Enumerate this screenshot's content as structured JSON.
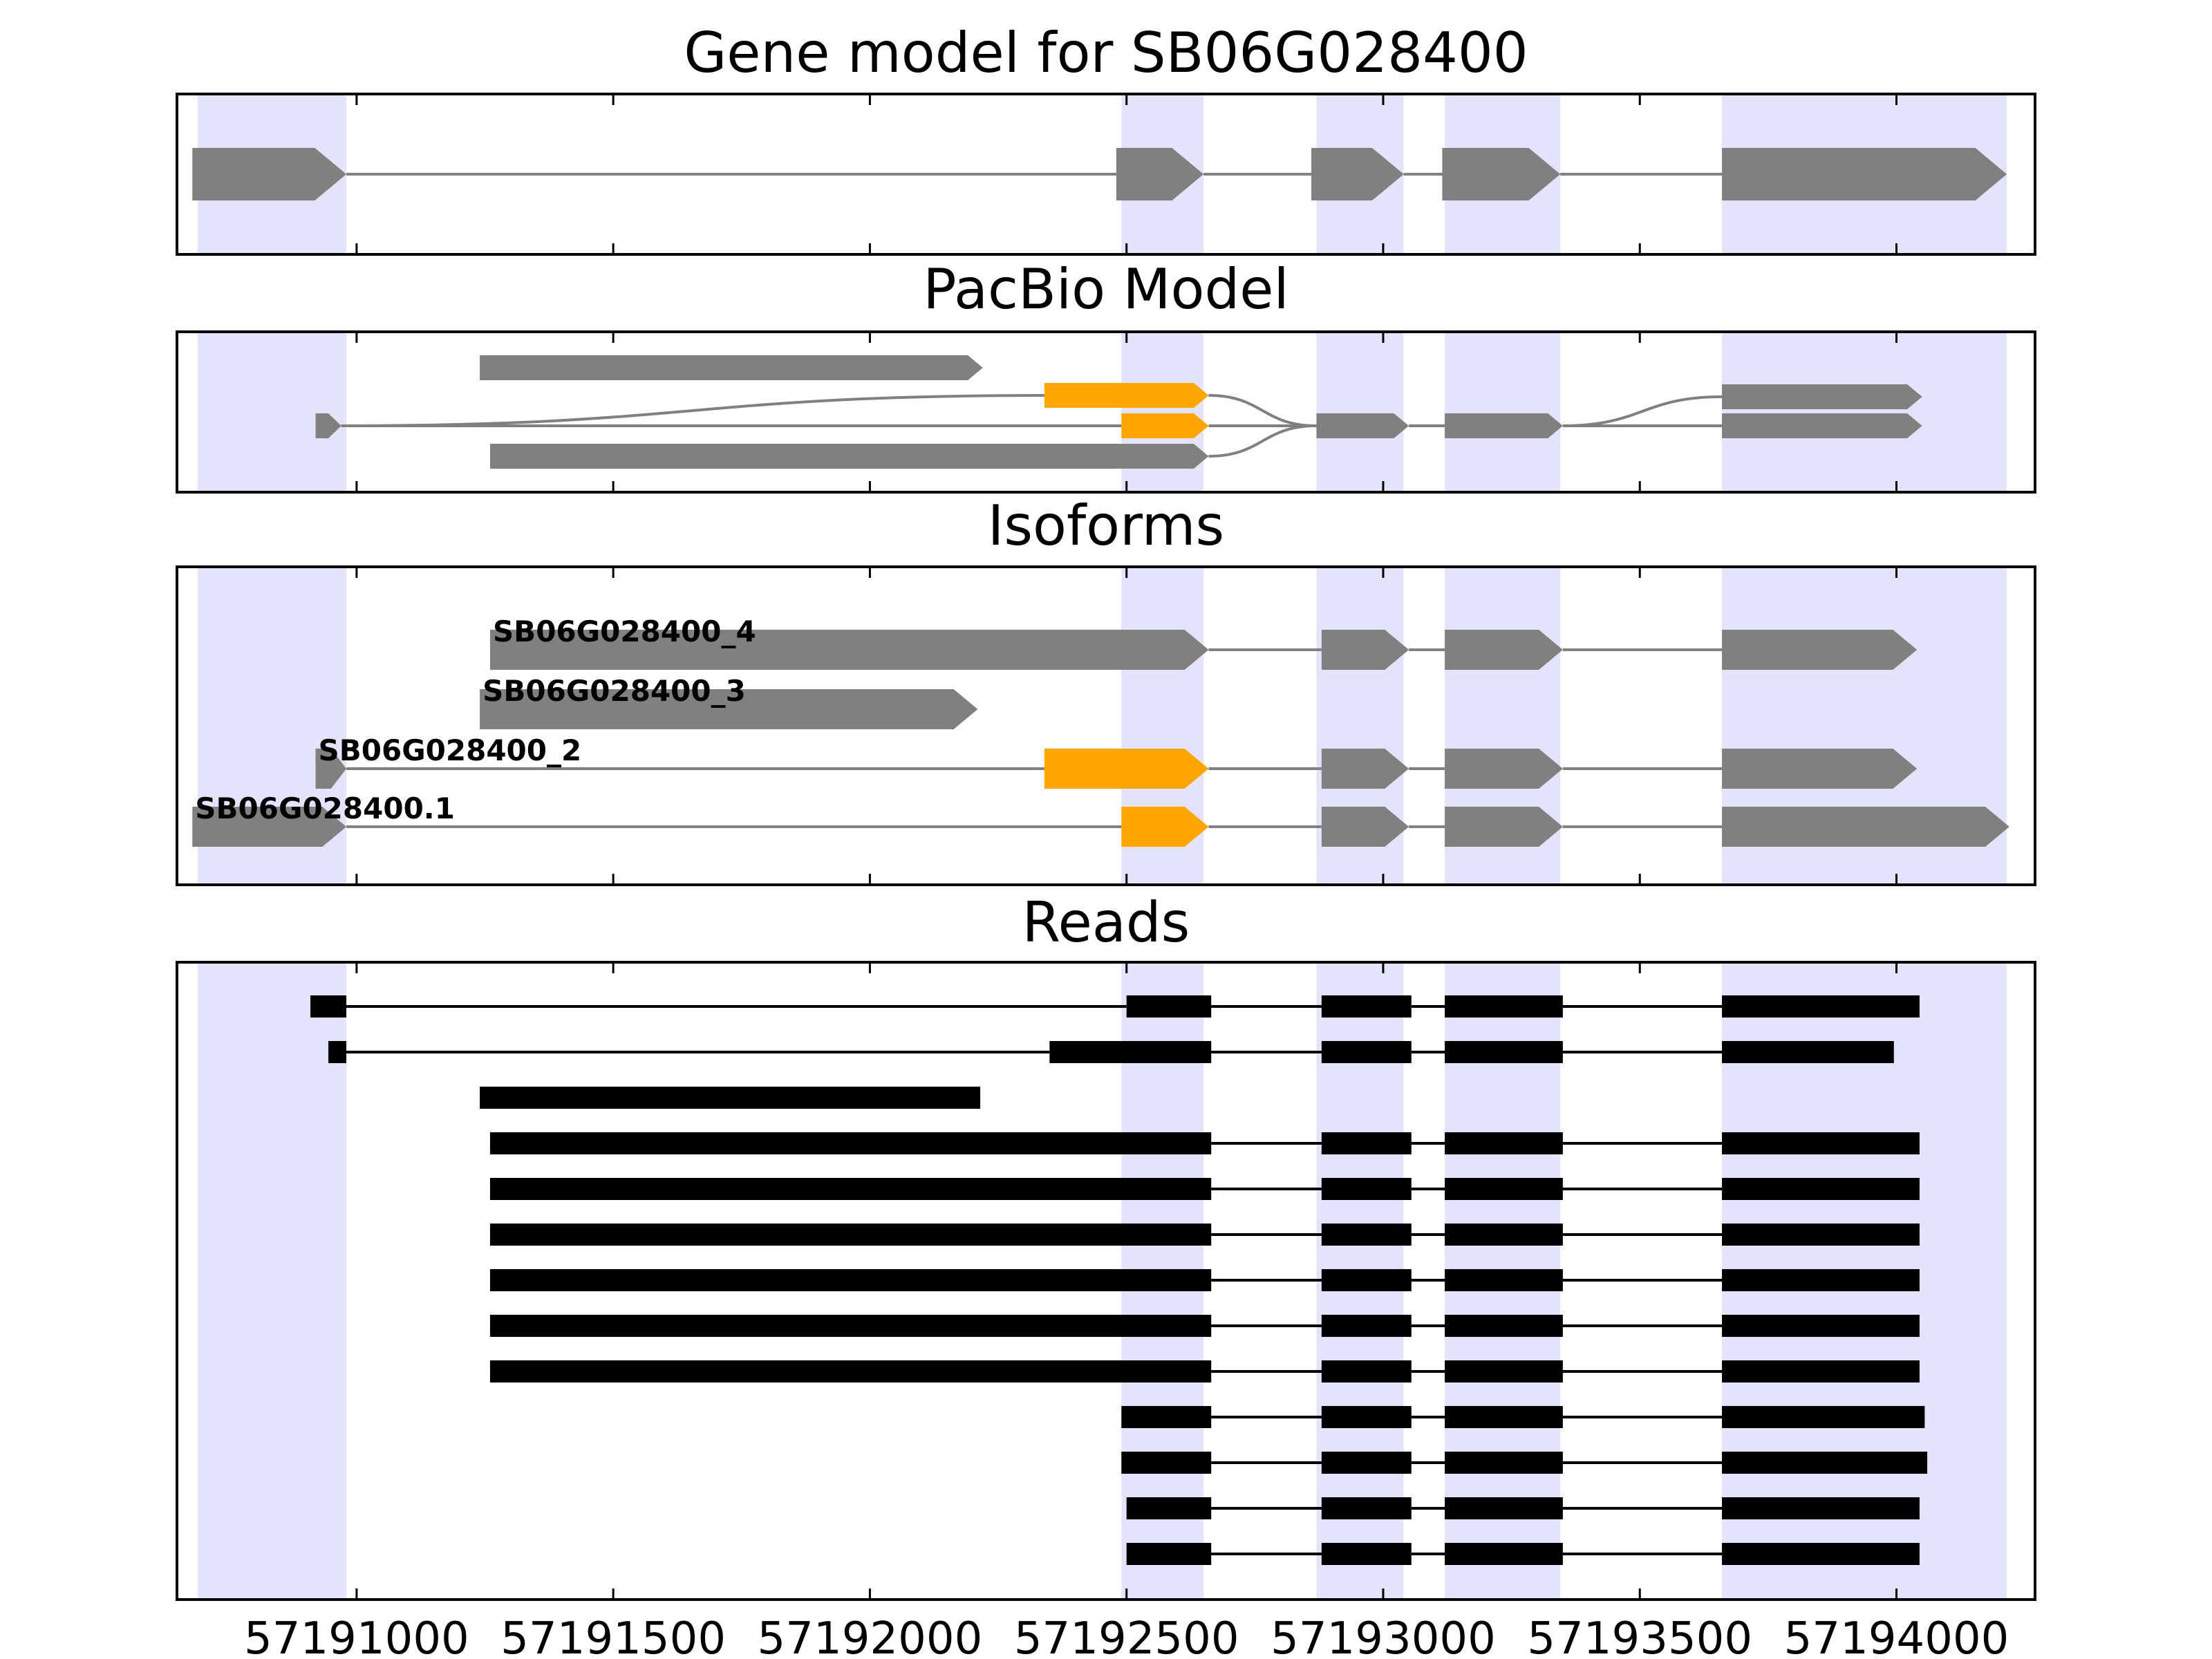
{
  "figure": {
    "titles": {
      "gene": "Gene model for SB06G028400",
      "pacbio": "PacBio Model",
      "isoforms": "Isoforms",
      "reads": "Reads"
    },
    "x_range": [
      57190650,
      57194270
    ],
    "x_ticks": [
      57191000,
      57191500,
      57192000,
      57192500,
      57193000,
      57193500,
      57194000
    ],
    "colors": {
      "exon": "#808080",
      "highlight": "#ffa500",
      "shade": "#e3e3fb",
      "read": "#000000",
      "intron": "#808080"
    },
    "shaded_regions": [
      [
        57190690,
        57190980
      ],
      [
        57192490,
        57192650
      ],
      [
        57192870,
        57193040
      ],
      [
        57193120,
        57193345
      ],
      [
        57193660,
        57194215
      ]
    ],
    "gene_model": {
      "exons": [
        [
          57190680,
          57190980
        ],
        [
          57192480,
          57192650
        ],
        [
          57192860,
          57193040
        ],
        [
          57193115,
          57193345
        ],
        [
          57193660,
          57194215
        ]
      ]
    },
    "pacbio_model": {
      "rows": [
        {
          "exons": [
            [
              57191240,
              57192220
            ]
          ]
        },
        {
          "exons": [
            [
              57190920,
              57190970
            ],
            [
              57192490,
              57192660
            ],
            [
              57192870,
              57193050
            ],
            [
              57193120,
              57193350
            ],
            [
              57193660,
              57194050
            ]
          ],
          "highlight": [
            1
          ]
        },
        {
          "exons": [
            [
              57191260,
              57192660
            ]
          ]
        }
      ],
      "alt_starts": [
        {
          "exon": [
            57192340,
            57192660
          ],
          "highlight": true
        }
      ],
      "alt_ends": [
        {
          "exon": [
            57193660,
            57194050
          ]
        }
      ]
    },
    "isoforms": [
      {
        "name": "SB06G028400_4",
        "exons": [
          [
            57191260,
            57192660
          ],
          [
            57192880,
            57193050
          ],
          [
            57193120,
            57193350
          ],
          [
            57193660,
            57194040
          ]
        ],
        "highlight": []
      },
      {
        "name": "SB06G028400_3",
        "exons": [
          [
            57191240,
            57192210
          ]
        ],
        "highlight": []
      },
      {
        "name": "SB06G028400_2",
        "exons": [
          [
            57190920,
            57190980
          ],
          [
            57192340,
            57192660
          ],
          [
            57192880,
            57193050
          ],
          [
            57193120,
            57193350
          ],
          [
            57193660,
            57194040
          ]
        ],
        "highlight": [
          1
        ]
      },
      {
        "name": "SB06G028400.1",
        "exons": [
          [
            57190680,
            57190980
          ],
          [
            57192490,
            57192660
          ],
          [
            57192880,
            57193050
          ],
          [
            57193120,
            57193350
          ],
          [
            57193660,
            57194220
          ]
        ],
        "highlight": [
          1
        ]
      }
    ],
    "reads": [
      [
        [
          57190910,
          57190980
        ],
        [
          57192500,
          57192665
        ],
        [
          57192880,
          57193055
        ],
        [
          57193120,
          57193350
        ],
        [
          57193660,
          57194045
        ]
      ],
      [
        [
          57190945,
          57190980
        ],
        [
          57192350,
          57192665
        ],
        [
          57192880,
          57193055
        ],
        [
          57193120,
          57193350
        ],
        [
          57193660,
          57193995
        ]
      ],
      [
        [
          57191240,
          57192215
        ]
      ],
      [
        [
          57191260,
          57192665
        ],
        [
          57192880,
          57193055
        ],
        [
          57193120,
          57193350
        ],
        [
          57193660,
          57194045
        ]
      ],
      [
        [
          57191260,
          57192665
        ],
        [
          57192880,
          57193055
        ],
        [
          57193120,
          57193350
        ],
        [
          57193660,
          57194045
        ]
      ],
      [
        [
          57191260,
          57192665
        ],
        [
          57192880,
          57193055
        ],
        [
          57193120,
          57193350
        ],
        [
          57193660,
          57194045
        ]
      ],
      [
        [
          57191260,
          57192665
        ],
        [
          57192880,
          57193055
        ],
        [
          57193120,
          57193350
        ],
        [
          57193660,
          57194045
        ]
      ],
      [
        [
          57191260,
          57192665
        ],
        [
          57192880,
          57193055
        ],
        [
          57193120,
          57193350
        ],
        [
          57193660,
          57194045
        ]
      ],
      [
        [
          57191260,
          57192665
        ],
        [
          57192880,
          57193055
        ],
        [
          57193120,
          57193350
        ],
        [
          57193660,
          57194045
        ]
      ],
      [
        [
          57192490,
          57192665
        ],
        [
          57192880,
          57193055
        ],
        [
          57193120,
          57193350
        ],
        [
          57193660,
          57194055
        ]
      ],
      [
        [
          57192490,
          57192665
        ],
        [
          57192880,
          57193055
        ],
        [
          57193120,
          57193350
        ],
        [
          57193660,
          57194060
        ]
      ],
      [
        [
          57192500,
          57192665
        ],
        [
          57192880,
          57193055
        ],
        [
          57193120,
          57193350
        ],
        [
          57193660,
          57194045
        ]
      ],
      [
        [
          57192500,
          57192665
        ],
        [
          57192880,
          57193055
        ],
        [
          57193120,
          57193350
        ],
        [
          57193660,
          57194045
        ]
      ]
    ]
  }
}
